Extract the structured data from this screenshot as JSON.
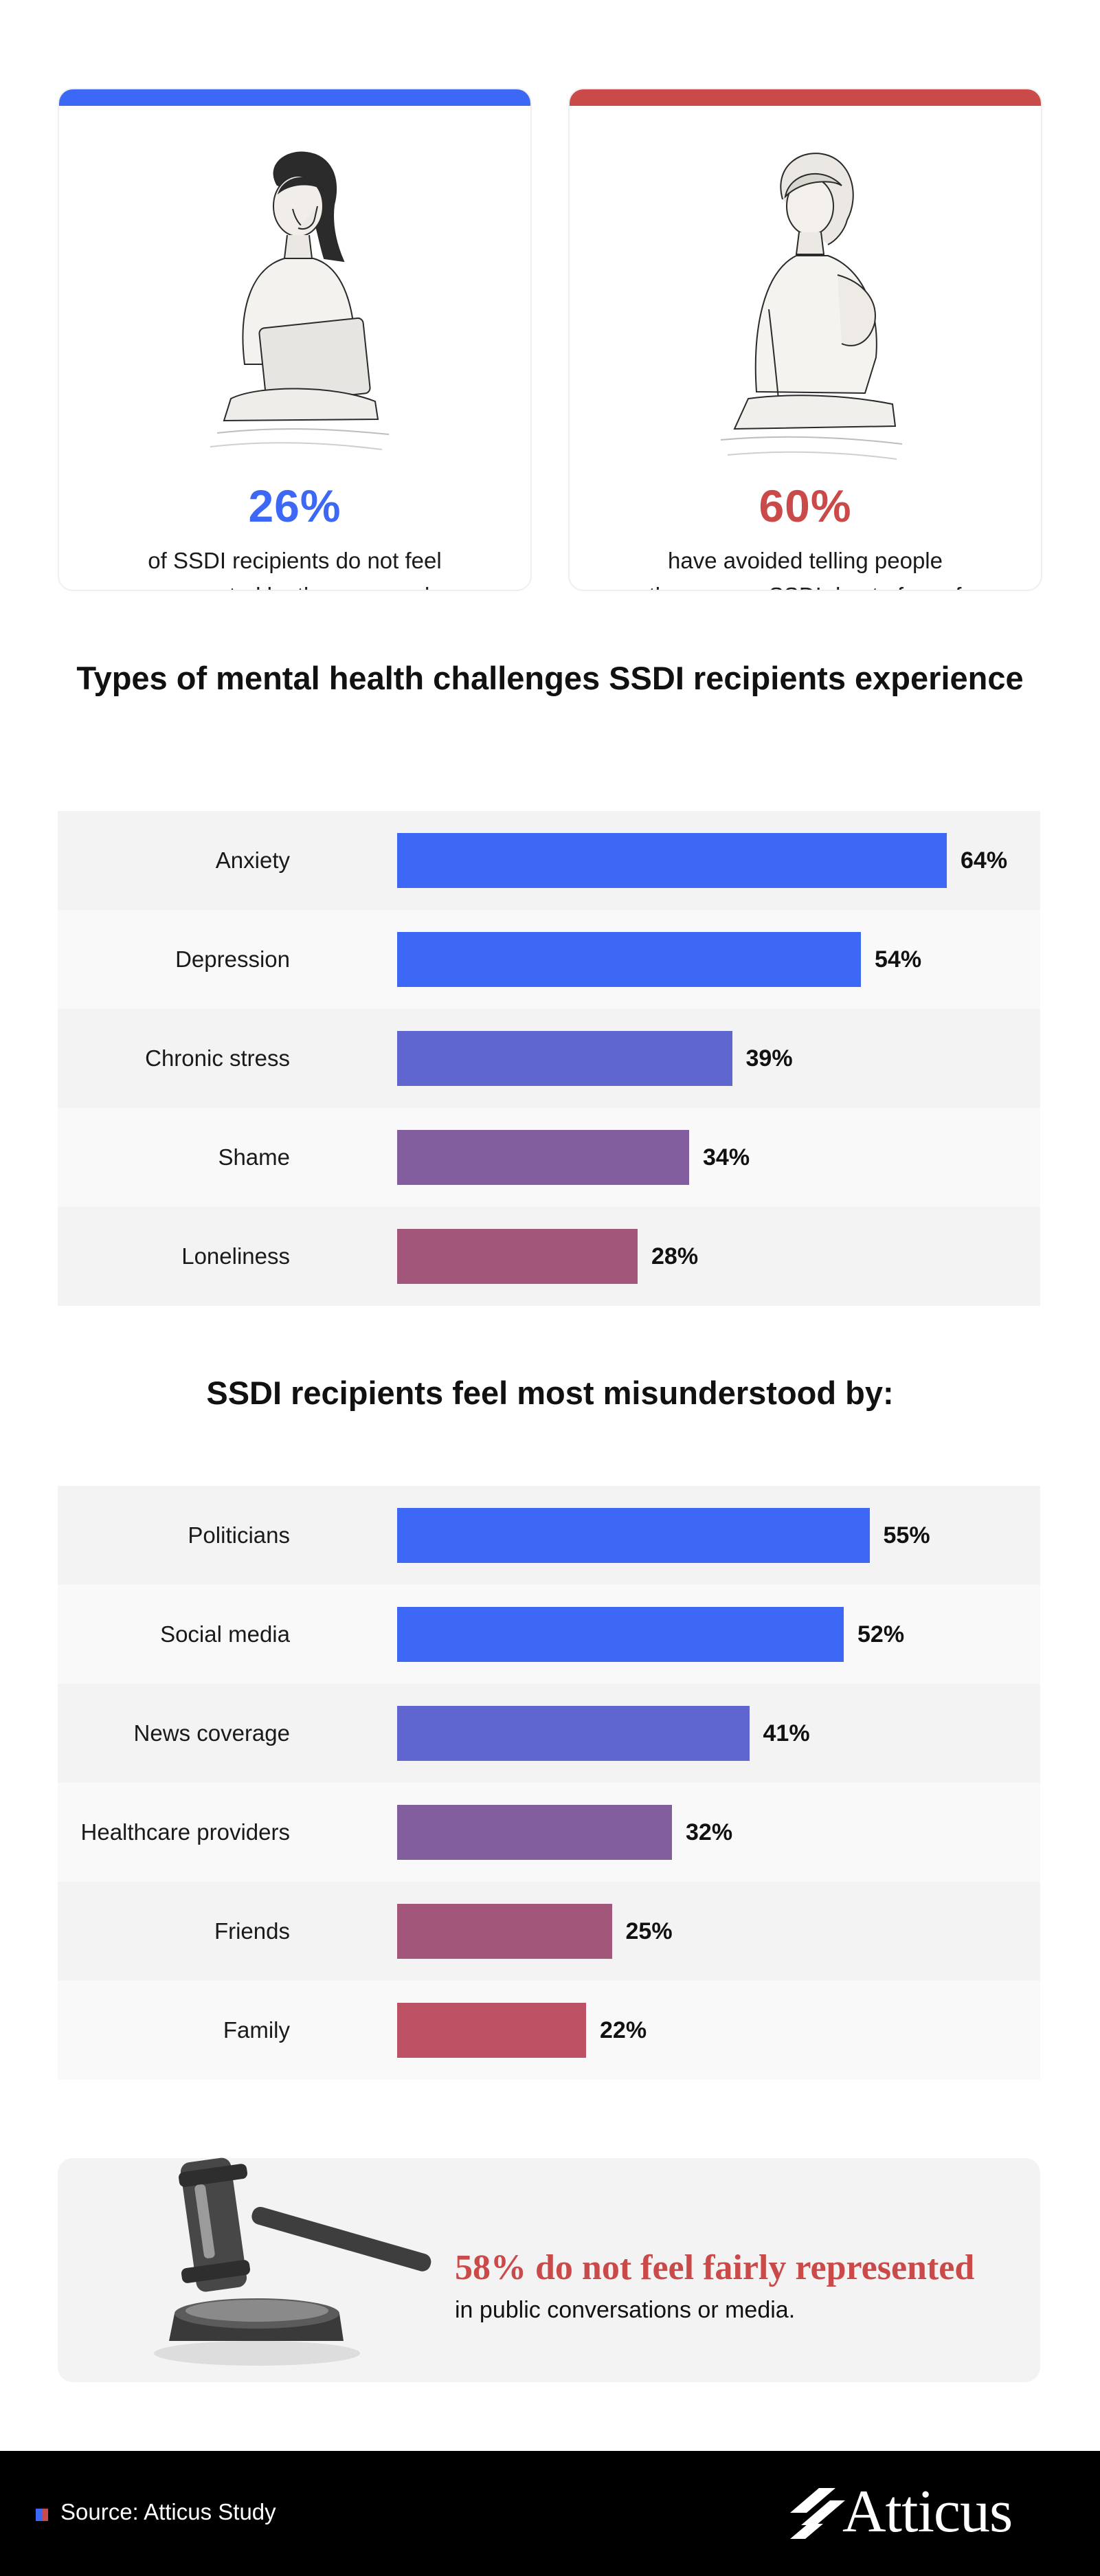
{
  "colors": {
    "blue": "#3d68f5",
    "red": "#c94a49",
    "ink": "#111111"
  },
  "cards": [
    {
      "percent": "26%",
      "desc": "of SSDI recipients do not feel supported by those around them.",
      "accent": "#3d68f5",
      "illustration": "woman-with-laptop-illustration"
    },
    {
      "percent": "60%",
      "desc": "have avoided telling people they are on SSDI due to fear of stigma or being judged.",
      "accent": "#c94a49",
      "illustration": "woman-with-back-pain-illustration"
    }
  ],
  "chart_data": [
    {
      "type": "bar",
      "orientation": "horizontal",
      "title": "Types of mental health challenges SSDI recipients experience",
      "categories": [
        "Anxiety",
        "Depression",
        "Chronic stress",
        "Shame",
        "Loneliness"
      ],
      "values": [
        64,
        54,
        39,
        34,
        28
      ],
      "value_labels": [
        "64%",
        "54%",
        "39%",
        "34%",
        "28%"
      ],
      "bar_colors": [
        "#3d68f5",
        "#3d68f5",
        "#6066cf",
        "#835e9f",
        "#a2577a"
      ],
      "unit": "%",
      "xlim": [
        0,
        64
      ]
    },
    {
      "type": "bar",
      "orientation": "horizontal",
      "title": "SSDI recipients feel most misunderstood by:",
      "categories": [
        "Politicians",
        "Social media",
        "News coverage",
        "Healthcare providers",
        "Friends",
        "Family"
      ],
      "values": [
        55,
        52,
        41,
        32,
        25,
        22
      ],
      "value_labels": [
        "55%",
        "52%",
        "41%",
        "32%",
        "25%",
        "22%"
      ],
      "bar_colors": [
        "#3d68f5",
        "#3d68f5",
        "#6066cf",
        "#835e9f",
        "#a2577a",
        "#bd5264"
      ],
      "unit": "%",
      "xlim": [
        0,
        64
      ]
    }
  ],
  "callout": {
    "headline": "58% do not feel fairly represented",
    "sub": "in public conversations or media.",
    "icon": "gavel-icon"
  },
  "footer": {
    "source": "Source: Atticus Study",
    "logo": "Atticus"
  }
}
